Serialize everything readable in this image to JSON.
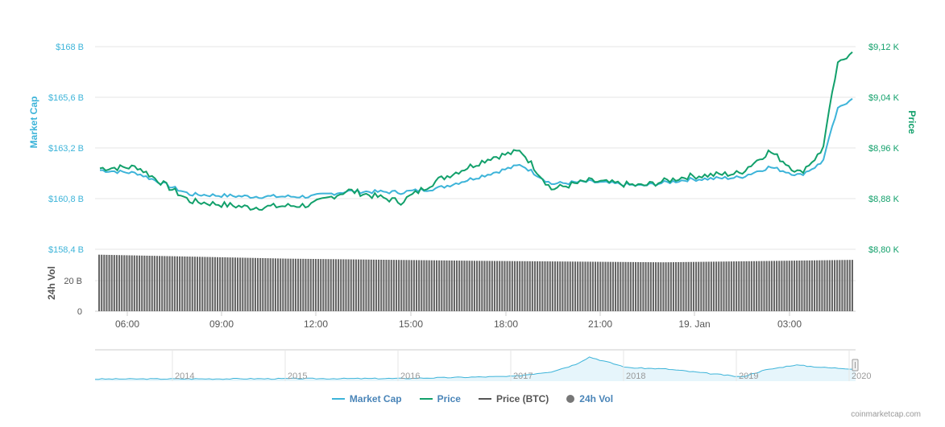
{
  "chart_data": {
    "type": "line",
    "x_ticks": [
      "06:00",
      "09:00",
      "12:00",
      "15:00",
      "18:00",
      "21:00",
      "19. Jan",
      "03:00"
    ],
    "y_left": {
      "label": "Market Cap",
      "ticks": [
        "$168 B",
        "$165,6 B",
        "$163,2 B",
        "$160,8 B",
        "$158,4 B"
      ],
      "range": [
        158.4,
        168
      ]
    },
    "y_right": {
      "label": "Price",
      "ticks": [
        "$9,12 K",
        "$9,04 K",
        "$8,96 K",
        "$8,88 K",
        "$8,80 K"
      ],
      "range": [
        8800,
        9120
      ]
    },
    "volume_axis": {
      "label": "24h Vol",
      "ticks": [
        "20 B",
        "0"
      ]
    },
    "series": [
      {
        "name": "Market Cap",
        "color": "#3db4d9",
        "keypoints": [
          [
            0,
            162.15
          ],
          [
            0.05,
            162.0
          ],
          [
            0.12,
            161.0
          ],
          [
            0.2,
            160.9
          ],
          [
            0.28,
            160.9
          ],
          [
            0.33,
            161.15
          ],
          [
            0.4,
            161.1
          ],
          [
            0.45,
            161.3
          ],
          [
            0.52,
            162.0
          ],
          [
            0.56,
            162.4
          ],
          [
            0.6,
            161.5
          ],
          [
            0.65,
            161.6
          ],
          [
            0.72,
            161.4
          ],
          [
            0.78,
            161.7
          ],
          [
            0.85,
            161.8
          ],
          [
            0.89,
            162.3
          ],
          [
            0.93,
            161.9
          ],
          [
            0.96,
            162.5
          ],
          [
            0.98,
            165.0
          ],
          [
            1.0,
            165.6
          ]
        ]
      },
      {
        "name": "Price",
        "color": "#12a06b",
        "keypoints": [
          [
            0,
            8928
          ],
          [
            0.05,
            8930
          ],
          [
            0.12,
            8876
          ],
          [
            0.2,
            8866
          ],
          [
            0.28,
            8870
          ],
          [
            0.33,
            8893
          ],
          [
            0.4,
            8875
          ],
          [
            0.45,
            8910
          ],
          [
            0.52,
            8945
          ],
          [
            0.56,
            8955
          ],
          [
            0.6,
            8895
          ],
          [
            0.65,
            8908
          ],
          [
            0.72,
            8900
          ],
          [
            0.78,
            8915
          ],
          [
            0.85,
            8920
          ],
          [
            0.89,
            8955
          ],
          [
            0.93,
            8920
          ],
          [
            0.96,
            8955
          ],
          [
            0.98,
            9090
          ],
          [
            1.0,
            9115
          ]
        ]
      },
      {
        "name": "Price (BTC)",
        "color": "#555555",
        "keypoints": []
      },
      {
        "name": "24h Vol",
        "color": "#555555",
        "bar_count": 300,
        "values_fraction_of_20B_tick": [
          1.85,
          1.72,
          1.65,
          1.6,
          1.68
        ]
      }
    ],
    "navigator": {
      "labels": [
        "2014",
        "2015",
        "2016",
        "2017",
        "2018",
        "2019",
        "2020"
      ],
      "keypoints": [
        [
          0,
          0.02
        ],
        [
          0.4,
          0.04
        ],
        [
          0.55,
          0.12
        ],
        [
          0.6,
          0.3
        ],
        [
          0.63,
          0.55
        ],
        [
          0.65,
          0.85
        ],
        [
          0.7,
          0.45
        ],
        [
          0.75,
          0.4
        ],
        [
          0.8,
          0.25
        ],
        [
          0.85,
          0.1
        ],
        [
          0.88,
          0.35
        ],
        [
          0.92,
          0.55
        ],
        [
          0.96,
          0.45
        ],
        [
          1.0,
          0.4
        ]
      ]
    }
  },
  "legend": [
    {
      "label": "Market Cap",
      "color": "#3db4d9",
      "kind": "line"
    },
    {
      "label": "Price",
      "color": "#12a06b",
      "kind": "line"
    },
    {
      "label": "Price (BTC)",
      "color": "#555555",
      "kind": "line"
    },
    {
      "label": "24h Vol",
      "color": "#777777",
      "kind": "dot"
    }
  ],
  "credit": "coinmarketcap.com"
}
